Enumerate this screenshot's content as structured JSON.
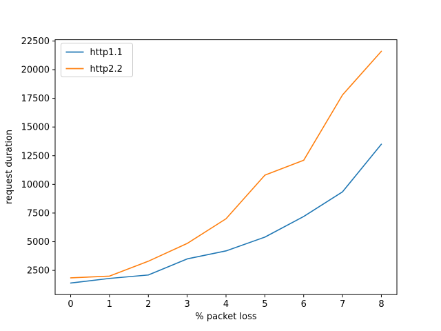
{
  "chart_data": {
    "type": "line",
    "title": "",
    "xlabel": "% packet loss",
    "ylabel": "request duration",
    "x": [
      0,
      1,
      2,
      3,
      4,
      5,
      6,
      7,
      8
    ],
    "series": [
      {
        "name": "http1.1",
        "color": "#1f77b4",
        "values": [
          1400,
          1800,
          2100,
          3500,
          4200,
          5400,
          7200,
          9350,
          13500
        ]
      },
      {
        "name": "http2.2",
        "color": "#ff7f0e",
        "values": [
          1850,
          2000,
          3300,
          4850,
          7000,
          10800,
          12100,
          17800,
          21600
        ]
      }
    ],
    "xticks": [
      0,
      1,
      2,
      3,
      4,
      5,
      6,
      7,
      8
    ],
    "yticks": [
      2500,
      5000,
      7500,
      10000,
      12500,
      15000,
      17500,
      20000,
      22500
    ],
    "xlim": [
      -0.4,
      8.4
    ],
    "ylim": [
      390,
      22610
    ],
    "grid": false,
    "legend": {
      "position": "upper left",
      "entries": [
        "http1.1",
        "http2.2"
      ]
    },
    "colors": {
      "spine": "#000000",
      "text": "#000000",
      "legend_edge": "#cccccc",
      "background": "#ffffff"
    }
  }
}
